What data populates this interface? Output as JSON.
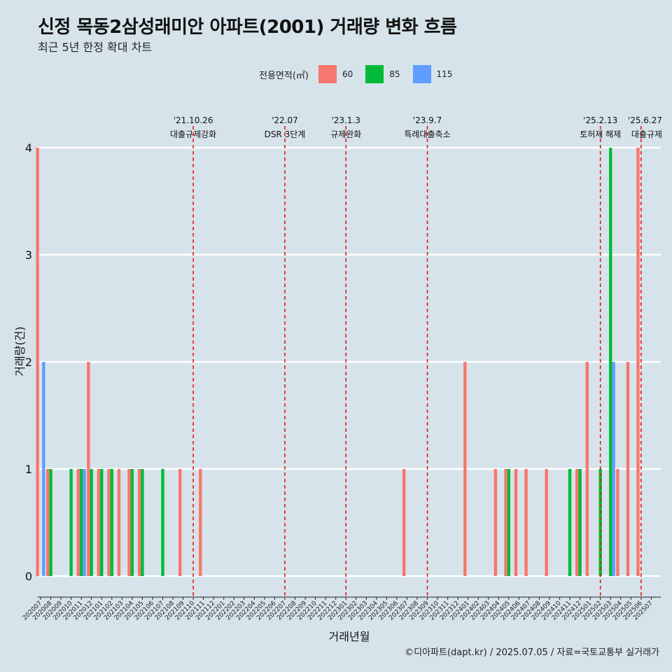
{
  "title": "신정 목동2삼성래미안 아파트(2001) 거래량 변화 흐름",
  "subtitle": "최근 5년 한정 확대 차트",
  "legend": {
    "title": "전용면적(㎡)",
    "items": [
      {
        "label": "60",
        "color": "#f8766d"
      },
      {
        "label": "85",
        "color": "#00ba38"
      },
      {
        "label": "115",
        "color": "#619cff"
      }
    ]
  },
  "caption": "©디아파트(dapt.kr) / 2025.07.05 / 자료=국토교통부 실거래가",
  "chart_data": {
    "type": "bar",
    "xlabel": "거래년월",
    "ylabel": "거래량(건)",
    "ylim": [
      0,
      4
    ],
    "yticks": [
      0,
      1,
      2,
      3,
      4
    ],
    "grid": true,
    "legend_position": "top",
    "categories": [
      "202007",
      "202008",
      "202009",
      "202010",
      "202011",
      "202012",
      "202101",
      "202102",
      "202103",
      "202104",
      "202105",
      "202106",
      "202107",
      "202108",
      "202109",
      "202110",
      "202111",
      "202112",
      "202201",
      "202202",
      "202203",
      "202204",
      "202205",
      "202206",
      "202207",
      "202208",
      "202209",
      "202210",
      "202211",
      "202212",
      "202301",
      "202302",
      "202303",
      "202304",
      "202305",
      "202306",
      "202307",
      "202308",
      "202309",
      "202310",
      "202311",
      "202312",
      "202401",
      "202402",
      "202403",
      "202404",
      "202405",
      "202406",
      "202407",
      "202408",
      "202409",
      "202410",
      "202411",
      "202412",
      "202501",
      "202502",
      "202503",
      "202504",
      "202505",
      "202506",
      "202507"
    ],
    "series": [
      {
        "name": "60",
        "color": "#f8766d",
        "values": [
          4,
          1,
          0,
          0,
          1,
          2,
          1,
          1,
          1,
          1,
          1,
          0,
          0,
          0,
          1,
          0,
          1,
          0,
          0,
          0,
          0,
          0,
          0,
          0,
          0,
          0,
          0,
          0,
          0,
          0,
          0,
          0,
          0,
          0,
          0,
          0,
          1,
          0,
          0,
          0,
          0,
          0,
          2,
          0,
          0,
          1,
          1,
          1,
          1,
          0,
          1,
          0,
          0,
          1,
          2,
          0,
          0,
          1,
          2,
          4,
          0
        ]
      },
      {
        "name": "85",
        "color": "#00ba38",
        "values": [
          0,
          1,
          0,
          1,
          1,
          1,
          1,
          1,
          0,
          1,
          1,
          0,
          1,
          0,
          0,
          0,
          0,
          0,
          0,
          0,
          0,
          0,
          0,
          0,
          0,
          0,
          0,
          0,
          0,
          0,
          0,
          0,
          0,
          0,
          0,
          0,
          0,
          0,
          0,
          0,
          0,
          0,
          0,
          0,
          0,
          0,
          1,
          0,
          0,
          0,
          0,
          0,
          1,
          1,
          0,
          1,
          4,
          0,
          0,
          0,
          0
        ]
      },
      {
        "name": "115",
        "color": "#619cff",
        "values": [
          2,
          0,
          0,
          0,
          1,
          0,
          0,
          0,
          0,
          0,
          0,
          0,
          0,
          0,
          0,
          0,
          0,
          0,
          0,
          0,
          0,
          0,
          0,
          0,
          0,
          0,
          0,
          0,
          0,
          0,
          0,
          0,
          0,
          0,
          0,
          0,
          0,
          0,
          0,
          0,
          0,
          0,
          0,
          0,
          0,
          0,
          0,
          0,
          0,
          0,
          0,
          0,
          0,
          0,
          0,
          0,
          2,
          0,
          0,
          0,
          0
        ]
      }
    ],
    "annotations": [
      {
        "date": "'21.10.26",
        "label": "대출규제강화",
        "x": "202110"
      },
      {
        "date": "'22.07",
        "label": "DSR 3단계",
        "x": "202207"
      },
      {
        "date": "'23.1.3",
        "label": "규제완화",
        "x": "202301"
      },
      {
        "date": "'23.9.7",
        "label": "특례대출축소",
        "x": "202309"
      },
      {
        "date": "'25.2.13",
        "label": "토허제 해제",
        "x": "202502"
      },
      {
        "date": "'25.6.27",
        "label": "대출규제",
        "x": "202506"
      }
    ],
    "annotation_color": "#e41a1c"
  }
}
